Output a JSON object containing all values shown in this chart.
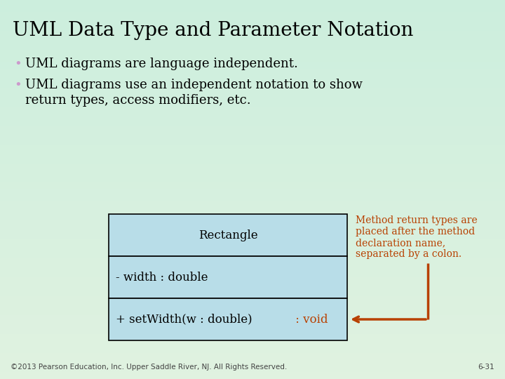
{
  "title": "UML Data Type and Parameter Notation",
  "bullet1": "UML diagrams are language independent.",
  "bullet2_line1": "UML diagrams use an independent notation to show",
  "bullet2_line2": "return types, access modifiers, etc.",
  "box_class_name": "Rectangle",
  "box_field": "- width : double",
  "box_method_black": "+ setWidth(w : double)",
  "box_method_red": " : void",
  "annotation_line1": "Method return types are",
  "annotation_line2": "placed after the method",
  "annotation_line3": "declaration name,",
  "annotation_line4": "separated by a colon.",
  "footer": "©2013 Pearson Education, Inc. Upper Saddle River, NJ. All Rights Reserved.",
  "footer_right": "6-31",
  "bg_top": "#d5f0d5",
  "bg_bottom": "#e8f5e8",
  "box_bg": "#b8dde8",
  "box_border": "#000000",
  "title_color": "#000000",
  "bullet_color": "#000000",
  "bullet_dot_color": "#cc99cc",
  "annotation_color": "#b84000",
  "footer_color": "#444444",
  "method_red": "#b84000",
  "arrow_color": "#b84000"
}
